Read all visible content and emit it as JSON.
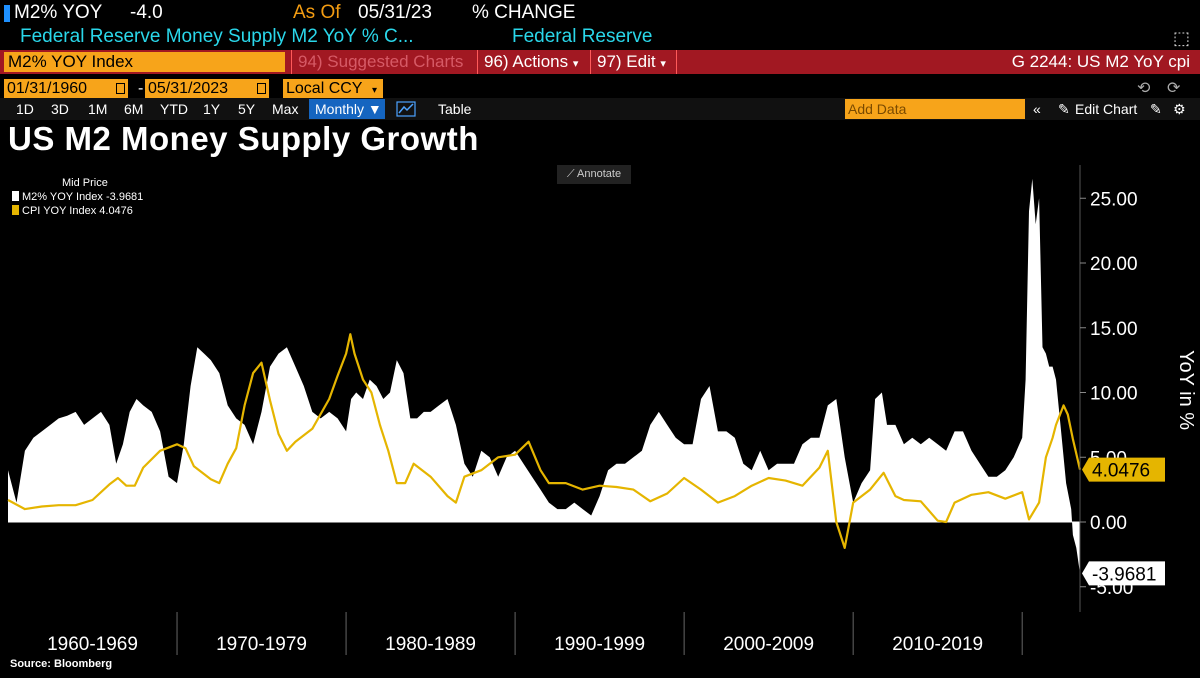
{
  "header": {
    "ticker": "M2% YOY",
    "value": "-4.0",
    "as_of_label": "As Of",
    "as_of_date": "05/31/23",
    "change_label": "% CHANGE",
    "description": "Federal Reserve Money Supply M2 YoY % C...",
    "source_name": "Federal Reserve"
  },
  "toolbar": {
    "index_name": "M2% YOY Index",
    "suggested": "94) Suggested Charts",
    "actions": "96) Actions",
    "edit": "97) Edit",
    "code": "G 2244: US M2 YoY cpi",
    "start_date": "01/31/1960",
    "end_date": "05/31/2023",
    "currency": "Local CCY",
    "periods": [
      "1D",
      "3D",
      "1M",
      "6M",
      "YTD",
      "1Y",
      "5Y",
      "Max"
    ],
    "frequency": "Monthly",
    "table_label": "Table",
    "add_data_placeholder": "Add Data",
    "edit_chart_label": "Edit Chart"
  },
  "colors": {
    "m2": "#ffffff",
    "cpi": "#e5b500",
    "accent_orange": "#f7a41a",
    "bar_red": "#a11822"
  },
  "chart_data": {
    "type": "area",
    "title": "US M2 Money Supply Growth",
    "annotate_label": "Annotate",
    "legend_header": "Mid Price",
    "ylabel": "YoY in %",
    "ylim": [
      -5,
      27
    ],
    "yticks": [
      "25.00",
      "20.00",
      "15.00",
      "10.00",
      "5.00",
      "0.00",
      "-5.00"
    ],
    "ytick_values": [
      25,
      20,
      15,
      10,
      5,
      0,
      -5
    ],
    "xlim": [
      1960.0,
      2023.42
    ],
    "decades": [
      "1960-1969",
      "1970-1979",
      "1980-1989",
      "1990-1999",
      "2000-2009",
      "2010-2019"
    ],
    "decade_starts": [
      1960,
      1970,
      1980,
      1990,
      2000,
      2010,
      2020
    ],
    "source": "Source: Bloomberg",
    "series": [
      {
        "name": "M2% YOY Index",
        "last": "-3.9681",
        "last_value": -3.9681,
        "style": "area",
        "x": [
          1960.0,
          1960.5,
          1961.0,
          1961.5,
          1962.0,
          1962.5,
          1963.0,
          1963.5,
          1964.0,
          1964.5,
          1965.0,
          1965.5,
          1966.0,
          1966.4,
          1966.8,
          1967.2,
          1967.6,
          1968.0,
          1968.5,
          1969.0,
          1969.5,
          1970.0,
          1970.4,
          1970.8,
          1971.2,
          1971.6,
          1972.0,
          1972.5,
          1973.0,
          1973.5,
          1974.0,
          1974.5,
          1975.0,
          1975.5,
          1976.0,
          1976.5,
          1977.0,
          1977.5,
          1978.0,
          1978.5,
          1979.0,
          1979.5,
          1980.0,
          1980.3,
          1980.6,
          1981.0,
          1981.4,
          1981.8,
          1982.2,
          1982.6,
          1983.0,
          1983.4,
          1983.8,
          1984.2,
          1984.6,
          1985.0,
          1985.5,
          1986.0,
          1986.5,
          1987.0,
          1987.5,
          1988.0,
          1988.5,
          1989.0,
          1989.5,
          1990.0,
          1990.5,
          1991.0,
          1991.5,
          1992.0,
          1992.5,
          1993.0,
          1993.5,
          1994.0,
          1994.5,
          1995.0,
          1995.5,
          1996.0,
          1996.5,
          1997.0,
          1997.5,
          1998.0,
          1998.5,
          1999.0,
          1999.5,
          2000.0,
          2000.5,
          2001.0,
          2001.5,
          2002.0,
          2002.5,
          2003.0,
          2003.5,
          2004.0,
          2004.5,
          2005.0,
          2005.5,
          2006.0,
          2006.5,
          2007.0,
          2007.5,
          2008.0,
          2008.5,
          2009.0,
          2009.5,
          2010.0,
          2010.5,
          2011.0,
          2011.3,
          2011.7,
          2012.0,
          2012.5,
          2013.0,
          2013.5,
          2014.0,
          2014.5,
          2015.0,
          2015.5,
          2016.0,
          2016.5,
          2017.0,
          2017.5,
          2018.0,
          2018.5,
          2019.0,
          2019.5,
          2020.0,
          2020.2,
          2020.4,
          2020.6,
          2020.8,
          2021.0,
          2021.2,
          2021.4,
          2021.6,
          2021.8,
          2022.0,
          2022.3,
          2022.6,
          2022.9,
          2023.0,
          2023.2,
          2023.42
        ],
        "y": [
          4.0,
          1.5,
          5.5,
          6.5,
          7.0,
          7.5,
          8.0,
          8.2,
          8.5,
          7.5,
          8.0,
          8.5,
          7.5,
          4.5,
          6.0,
          8.5,
          9.5,
          9.0,
          8.5,
          7.0,
          3.5,
          3.0,
          6.0,
          10.5,
          13.5,
          13.0,
          12.5,
          11.5,
          9.0,
          8.0,
          7.5,
          6.0,
          8.5,
          12.0,
          13.0,
          13.5,
          12.0,
          10.5,
          8.5,
          8.0,
          8.5,
          8.0,
          7.0,
          9.5,
          10.0,
          9.5,
          11.0,
          10.5,
          9.5,
          10.0,
          12.5,
          11.5,
          8.0,
          8.0,
          8.5,
          8.5,
          9.0,
          9.5,
          7.5,
          4.5,
          3.5,
          5.5,
          5.0,
          3.5,
          5.0,
          5.5,
          4.5,
          3.5,
          2.5,
          1.5,
          1.0,
          1.0,
          1.5,
          1.0,
          0.5,
          2.0,
          4.0,
          4.5,
          4.5,
          5.0,
          5.5,
          7.5,
          8.5,
          7.5,
          6.5,
          6.0,
          6.0,
          9.5,
          10.5,
          7.0,
          7.0,
          6.5,
          4.5,
          4.0,
          5.5,
          4.0,
          4.5,
          4.5,
          4.5,
          6.0,
          6.5,
          6.5,
          9.0,
          9.5,
          5.0,
          1.5,
          3.0,
          4.0,
          9.5,
          10.0,
          7.5,
          7.5,
          6.0,
          6.5,
          6.0,
          6.5,
          6.0,
          5.5,
          7.0,
          7.0,
          5.5,
          4.5,
          3.5,
          3.5,
          4.0,
          5.0,
          6.5,
          11.0,
          24.0,
          26.5,
          23.0,
          25.0,
          13.5,
          13.0,
          12.0,
          12.0,
          11.0,
          7.0,
          3.0,
          1.0,
          -1.0,
          -2.0,
          -3.9681
        ]
      },
      {
        "name": "CPI YOY Index",
        "last": "4.0476",
        "last_value": 4.0476,
        "style": "line",
        "x": [
          1960.0,
          1961.0,
          1962.0,
          1963.0,
          1964.0,
          1965.0,
          1966.0,
          1966.5,
          1967.0,
          1967.5,
          1968.0,
          1969.0,
          1970.0,
          1970.5,
          1971.0,
          1972.0,
          1972.5,
          1973.0,
          1973.5,
          1974.0,
          1974.5,
          1975.0,
          1975.5,
          1976.0,
          1976.5,
          1977.0,
          1978.0,
          1979.0,
          1979.5,
          1980.0,
          1980.25,
          1980.5,
          1981.0,
          1981.5,
          1982.0,
          1982.5,
          1983.0,
          1983.5,
          1984.0,
          1985.0,
          1986.0,
          1986.5,
          1987.0,
          1988.0,
          1989.0,
          1990.0,
          1990.8,
          1991.5,
          1992.0,
          1993.0,
          1994.0,
          1995.0,
          1996.0,
          1997.0,
          1998.0,
          1999.0,
          2000.0,
          2001.0,
          2002.0,
          2003.0,
          2004.0,
          2005.0,
          2006.0,
          2007.0,
          2008.0,
          2008.5,
          2009.0,
          2009.5,
          2010.0,
          2011.0,
          2011.8,
          2012.5,
          2013.0,
          2014.0,
          2015.0,
          2015.5,
          2016.0,
          2017.0,
          2018.0,
          2019.0,
          2020.0,
          2020.4,
          2021.0,
          2021.4,
          2021.8,
          2022.0,
          2022.45,
          2022.7,
          2023.0,
          2023.42
        ],
        "y": [
          1.7,
          1.0,
          1.2,
          1.3,
          1.3,
          1.7,
          2.9,
          3.4,
          2.8,
          2.8,
          4.2,
          5.5,
          6.0,
          5.7,
          4.3,
          3.3,
          3.0,
          4.5,
          5.7,
          9.0,
          11.5,
          12.3,
          9.4,
          6.8,
          5.5,
          6.2,
          7.2,
          9.5,
          11.3,
          13.0,
          14.5,
          13.0,
          11.0,
          10.0,
          7.5,
          5.5,
          3.0,
          3.0,
          4.5,
          3.5,
          2.0,
          1.5,
          3.5,
          4.0,
          5.0,
          5.2,
          6.2,
          4.0,
          3.0,
          3.0,
          2.5,
          2.8,
          2.7,
          2.5,
          1.6,
          2.2,
          3.4,
          2.5,
          1.5,
          2.0,
          2.8,
          3.4,
          3.2,
          2.8,
          4.2,
          5.5,
          0.0,
          -2.0,
          1.5,
          2.5,
          3.8,
          2.0,
          1.7,
          1.6,
          0.1,
          0.0,
          1.5,
          2.1,
          2.3,
          1.8,
          2.3,
          0.2,
          1.5,
          5.0,
          6.5,
          7.5,
          9.0,
          8.3,
          6.4,
          4.0476
        ]
      }
    ]
  }
}
